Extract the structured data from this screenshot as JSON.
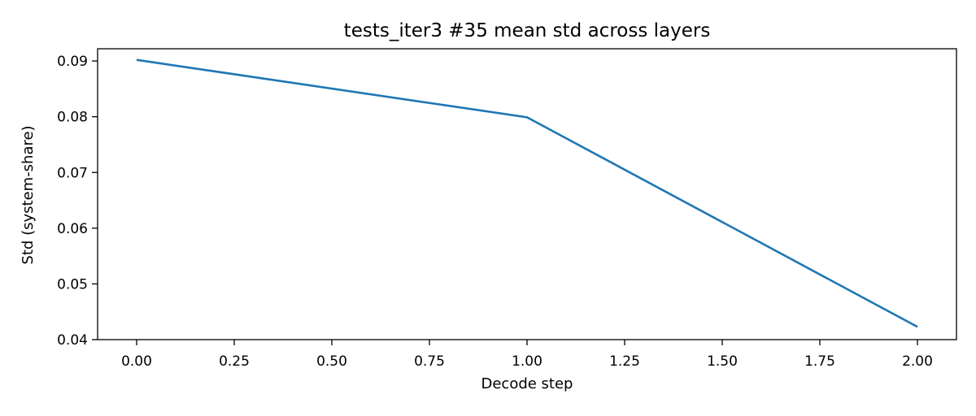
{
  "chart_data": {
    "type": "line",
    "title": "tests_iter3 #35 mean std across layers",
    "xlabel": "Decode step",
    "ylabel": "Std (system-share)",
    "xlim": [
      -0.1,
      2.1
    ],
    "ylim": [
      0.04,
      0.0922
    ],
    "x_ticks": [
      0.0,
      0.25,
      0.5,
      0.75,
      1.0,
      1.25,
      1.5,
      1.75,
      2.0
    ],
    "x_tick_labels": [
      "0.00",
      "0.25",
      "0.50",
      "0.75",
      "1.00",
      "1.25",
      "1.50",
      "1.75",
      "2.00"
    ],
    "y_ticks": [
      0.04,
      0.05,
      0.06,
      0.07,
      0.08,
      0.09
    ],
    "y_tick_labels": [
      "0.04",
      "0.05",
      "0.06",
      "0.07",
      "0.08",
      "0.09"
    ],
    "grid": false,
    "series": [
      {
        "color": "#1f77b4",
        "x": [
          0,
          1,
          2
        ],
        "y": [
          0.0902,
          0.0799,
          0.0423
        ]
      }
    ]
  }
}
